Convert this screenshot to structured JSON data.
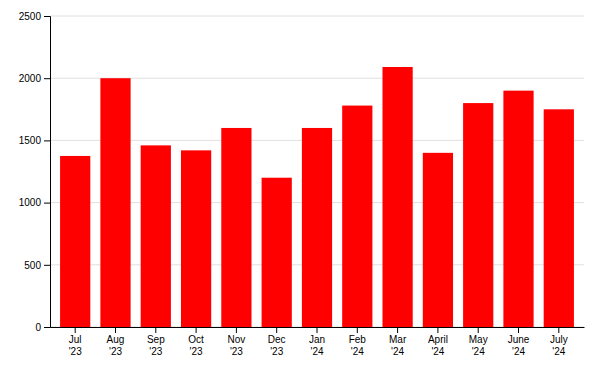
{
  "chart_data": {
    "type": "bar",
    "categories": [
      "Jul\n'23",
      "Aug\n'23",
      "Sep\n'23",
      "Oct\n'23",
      "Nov\n'23",
      "Dec\n'23",
      "Jan\n'24",
      "Feb\n'24",
      "Mar\n'24",
      "April\n'24",
      "May\n'24",
      "June\n'24",
      "July\n'24"
    ],
    "values": [
      1375,
      2000,
      1460,
      1420,
      1600,
      1200,
      1600,
      1780,
      2090,
      1400,
      1800,
      1900,
      1750
    ],
    "color": "#ff0000",
    "ylim": [
      0,
      2500
    ],
    "yticks": [
      0,
      500,
      1000,
      1500,
      2000,
      2500
    ],
    "grid": true
  }
}
